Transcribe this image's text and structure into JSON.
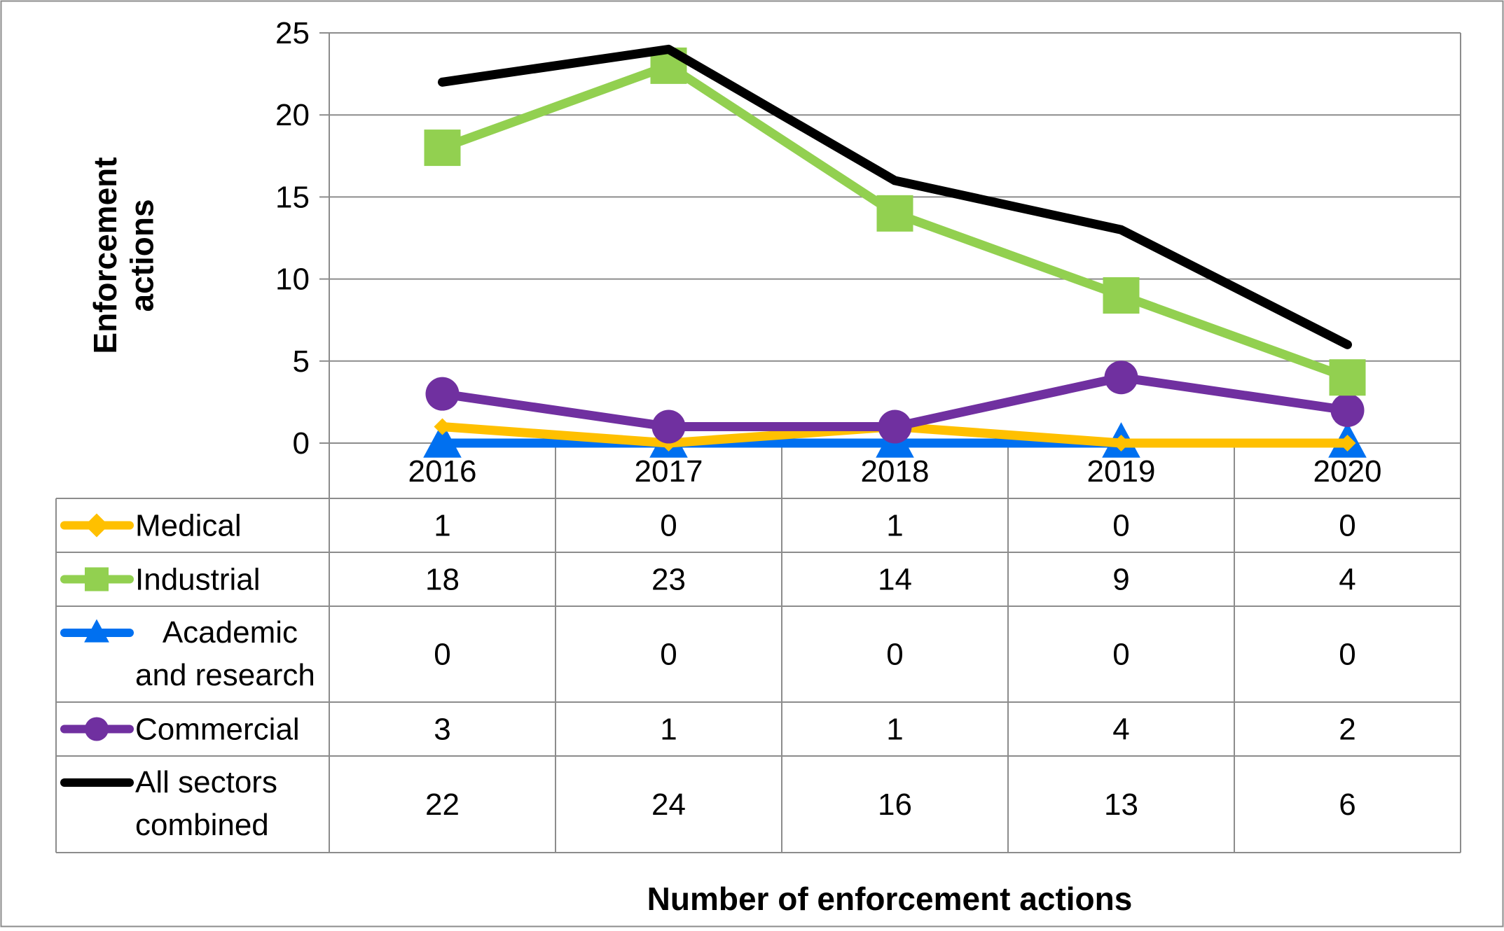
{
  "chart_data": {
    "type": "line",
    "title": "",
    "xlabel": "Number of enforcement actions",
    "ylabel": "Enforcement actions",
    "ylim": [
      0,
      25
    ],
    "yticks": [
      0,
      5,
      10,
      15,
      20,
      25
    ],
    "grid": true,
    "legend": "data-table",
    "categories": [
      "2016",
      "2017",
      "2018",
      "2019",
      "2020"
    ],
    "series": [
      {
        "name": "Medical",
        "label_lines": [
          "Medical"
        ],
        "color": "#FFC000",
        "marker": "diamond",
        "values": [
          1,
          0,
          1,
          0,
          0
        ]
      },
      {
        "name": "Industrial",
        "label_lines": [
          "Industrial"
        ],
        "color": "#92D050",
        "marker": "square",
        "values": [
          18,
          23,
          14,
          9,
          4
        ]
      },
      {
        "name": "Academic and research",
        "label_lines": [
          "Academic",
          "and research"
        ],
        "color": "#0070F0",
        "marker": "triangle",
        "values": [
          0,
          0,
          0,
          0,
          0
        ]
      },
      {
        "name": "Commercial",
        "label_lines": [
          "Commercial"
        ],
        "color": "#7030A0",
        "marker": "circle",
        "values": [
          3,
          1,
          1,
          4,
          2
        ]
      },
      {
        "name": "All sectors combined",
        "label_lines": [
          "All sectors",
          "combined"
        ],
        "color": "#000000",
        "marker": "none",
        "values": [
          22,
          24,
          16,
          13,
          6
        ]
      }
    ]
  }
}
